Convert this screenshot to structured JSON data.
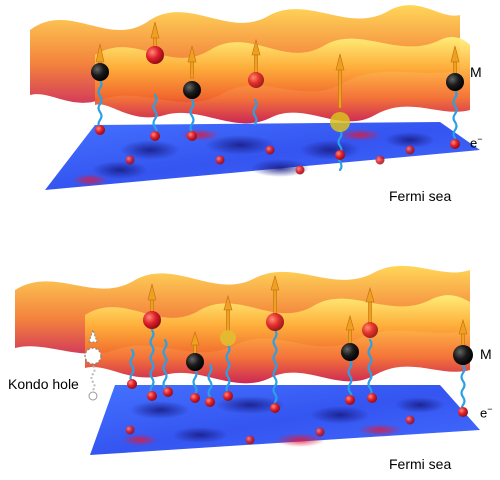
{
  "panels": [
    {
      "id": "top",
      "labels": {
        "moment": "M",
        "electron": "e",
        "electron_sup": "−",
        "sea": "Fermi sea"
      }
    },
    {
      "id": "bottom",
      "labels": {
        "moment": "M",
        "electron": "e",
        "electron_sup": "−",
        "sea": "Fermi sea",
        "hole": "Kondo hole"
      }
    }
  ],
  "colors": {
    "surface_top": "#ffe066",
    "surface_mid": "#ff9933",
    "surface_low": "#d9204a",
    "sea_blue": "#2a55ff",
    "sea_dark": "#1a1f8a",
    "electron_red": "#e0202a",
    "moment_black": "#111111",
    "spring_blue": "#2aa0e6",
    "arrow_orange": "#f0a020"
  }
}
